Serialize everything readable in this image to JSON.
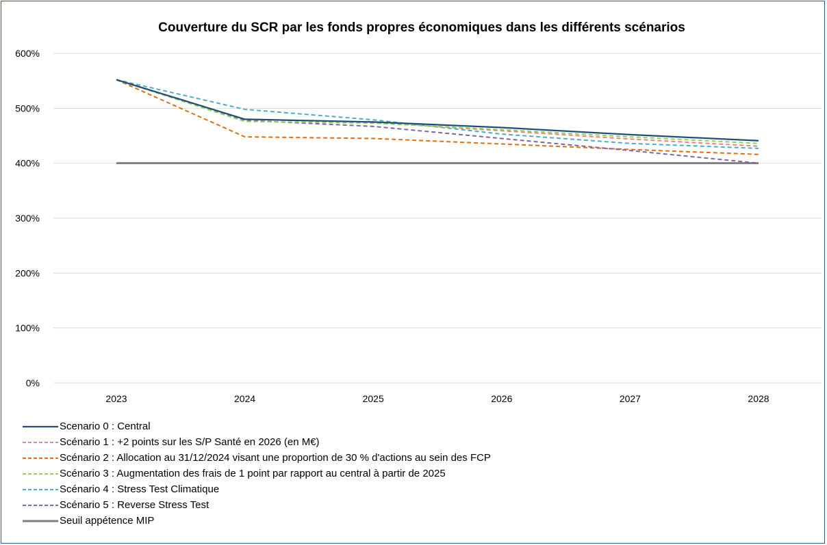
{
  "chart_data": {
    "type": "line",
    "title": "Couverture du SCR par les fonds propres économiques dans les différents scénarios",
    "categories": [
      "2023",
      "2024",
      "2025",
      "2026",
      "2027",
      "2028"
    ],
    "ylim": [
      0,
      600
    ],
    "yticks": [
      0,
      100,
      200,
      300,
      400,
      500,
      600
    ],
    "ytick_labels": [
      "0%",
      "100%",
      "200%",
      "300%",
      "400%",
      "500%",
      "600%"
    ],
    "grid": "horizontal",
    "legend_position": "bottom-left",
    "series": [
      {
        "name": "Scenario 0 : Central",
        "color": "#1f4e79",
        "dash": "solid",
        "values": [
          552,
          480,
          475,
          465,
          452,
          441
        ]
      },
      {
        "name": "Scénario 1 : +2 points sur les S/P Santé en 2026 (en M€)",
        "color": "#f08080",
        "dash": "dashed",
        "values": [
          552,
          480,
          474,
          459,
          444,
          431
        ]
      },
      {
        "name": "Scénario 2 : Allocation au 31/12/2024 visant une proportion de 30 % d'actions au sein des FCP",
        "color": "#e36c09",
        "dash": "dashed",
        "values": [
          552,
          448,
          445,
          435,
          425,
          416
        ]
      },
      {
        "name": "Scénario 3 : Augmentation des frais de 1 point par rapport au central à partir de 2025",
        "color": "#92d050",
        "dash": "dashed",
        "values": [
          552,
          476,
          473,
          461,
          448,
          436
        ]
      },
      {
        "name": "Scénario 4 : Stress Test Climatique",
        "color": "#4bacc6",
        "dash": "dashed",
        "values": [
          552,
          498,
          479,
          453,
          436,
          427
        ]
      },
      {
        "name": "Scénario 5 : Reverse Stress Test",
        "color": "#8064a2",
        "dash": "dashed",
        "values": [
          552,
          478,
          467,
          445,
          423,
          400
        ]
      },
      {
        "name": "Seuil appétence MIP",
        "color": "#7f7f7f",
        "dash": "solid-thick",
        "values": [
          400,
          400,
          400,
          400,
          400,
          400
        ]
      }
    ]
  }
}
